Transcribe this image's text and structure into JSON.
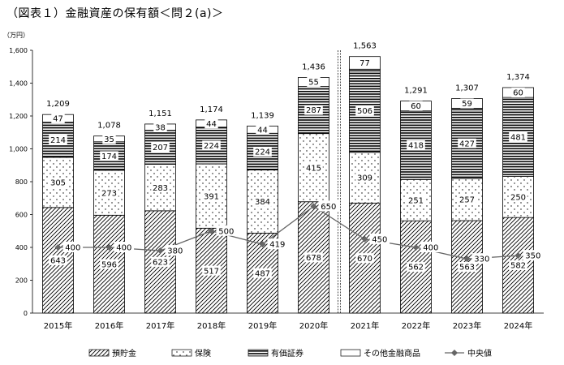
{
  "title": "（図表１）金融資産の保有額＜問２(a)＞",
  "chart_data": {
    "type": "bar",
    "stacked": true,
    "y_unit": "（万円）",
    "categories": [
      "2015年",
      "2016年",
      "2017年",
      "2018年",
      "2019年",
      "2020年",
      "2021年",
      "2022年",
      "2023年",
      "2024年"
    ],
    "series": [
      {
        "name": "預貯金",
        "pattern": "diagonal-hatch",
        "values": [
          643,
          596,
          623,
          517,
          487,
          678,
          670,
          562,
          563,
          582
        ]
      },
      {
        "name": "保険",
        "pattern": "dots",
        "values": [
          305,
          273,
          283,
          391,
          384,
          415,
          309,
          251,
          257,
          250
        ]
      },
      {
        "name": "有価証券",
        "pattern": "horizontal-lines",
        "values": [
          214,
          174,
          207,
          224,
          224,
          287,
          506,
          418,
          427,
          481
        ]
      },
      {
        "name": "その他金融商品",
        "pattern": "white",
        "values": [
          47,
          35,
          38,
          44,
          44,
          55,
          77,
          60,
          59,
          60
        ]
      }
    ],
    "totals": [
      "1,209",
      "1,078",
      "1,151",
      "1,174",
      "1,139",
      "1,436",
      "1,563",
      "1,291",
      "1,307",
      "1,374"
    ],
    "line_series": {
      "name": "中央値",
      "values": [
        400,
        400,
        380,
        500,
        419,
        650,
        450,
        400,
        330,
        350
      ]
    },
    "ylim": [
      0,
      1600
    ],
    "yticks": [
      "0",
      "200",
      "400",
      "600",
      "800",
      "1,000",
      "1,200",
      "1,400",
      "1,600"
    ],
    "ytick_values": [
      0,
      200,
      400,
      600,
      800,
      1000,
      1200,
      1400,
      1600
    ],
    "break_after_category": "2020年",
    "legend_position": "bottom"
  }
}
